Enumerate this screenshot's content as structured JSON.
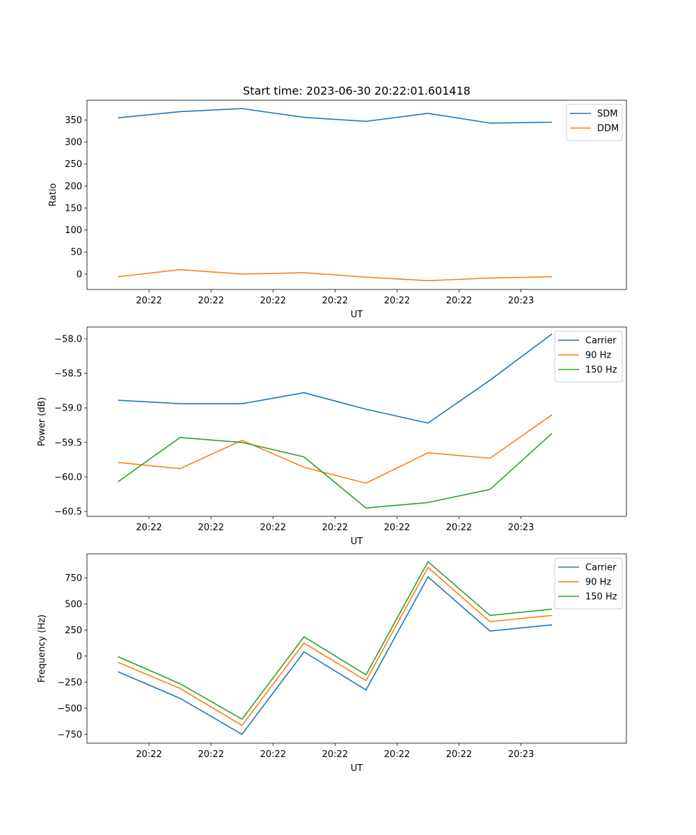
{
  "figure": {
    "title": "Start time: 2023-06-30 20:22:01.601418"
  },
  "chart_data": [
    {
      "type": "line",
      "title": "Start time: 2023-06-30 20:22:01.601418",
      "xlabel": "UT",
      "ylabel": "Ratio",
      "x": [
        1,
        2,
        3,
        4,
        5,
        6,
        7,
        8
      ],
      "x_tick_labels": [
        "20:22",
        "20:22",
        "20:22",
        "20:22",
        "20:22",
        "20:22",
        "20:23"
      ],
      "xlim": [
        0.5,
        9.2
      ],
      "ylim": [
        -35,
        395
      ],
      "yticks": [
        0,
        50,
        100,
        150,
        200,
        250,
        300,
        350
      ],
      "y_tick_labels": [
        "0",
        "50",
        "100",
        "150",
        "200",
        "250",
        "300",
        "350"
      ],
      "legend": "top-right",
      "series": [
        {
          "name": "SDM",
          "color": "#1f77b4",
          "values": [
            355,
            369,
            376,
            356,
            347,
            365,
            343,
            345
          ]
        },
        {
          "name": "DDM",
          "color": "#ff7f0e",
          "values": [
            -6,
            10,
            0,
            3,
            -7,
            -15,
            -9,
            -6
          ]
        }
      ]
    },
    {
      "type": "line",
      "xlabel": "UT",
      "ylabel": "Power (dB)",
      "x": [
        1,
        2,
        3,
        4,
        5,
        6,
        7,
        8
      ],
      "x_tick_labels": [
        "20:22",
        "20:22",
        "20:22",
        "20:22",
        "20:22",
        "20:22",
        "20:23"
      ],
      "xlim": [
        0.5,
        9.2
      ],
      "ylim": [
        -60.57,
        -57.83
      ],
      "yticks": [
        -60.5,
        -60.0,
        -59.5,
        -59.0,
        -58.5,
        -58.0
      ],
      "y_tick_labels": [
        "−60.5",
        "−60.0",
        "−59.5",
        "−59.0",
        "−58.5",
        "−58.0"
      ],
      "legend": "top-right",
      "series": [
        {
          "name": "Carrier",
          "color": "#1f77b4",
          "values": [
            -58.89,
            -58.94,
            -58.94,
            -58.78,
            -59.02,
            -59.22,
            -58.6,
            -57.93
          ]
        },
        {
          "name": "90 Hz",
          "color": "#ff7f0e",
          "values": [
            -59.79,
            -59.88,
            -59.47,
            -59.86,
            -60.09,
            -59.65,
            -59.73,
            -59.1
          ]
        },
        {
          "name": "150 Hz",
          "color": "#2ca02c",
          "values": [
            -60.07,
            -59.43,
            -59.5,
            -59.71,
            -60.45,
            -60.37,
            -60.18,
            -59.37
          ]
        }
      ]
    },
    {
      "type": "line",
      "xlabel": "UT",
      "ylabel": "Frequency (Hz)",
      "x": [
        1,
        2,
        3,
        4,
        5,
        6,
        7,
        8
      ],
      "x_tick_labels": [
        "20:22",
        "20:22",
        "20:22",
        "20:22",
        "20:22",
        "20:22",
        "20:23"
      ],
      "xlim": [
        0.5,
        9.2
      ],
      "ylim": [
        -835,
        980
      ],
      "yticks": [
        -750,
        -500,
        -250,
        0,
        250,
        500,
        750
      ],
      "y_tick_labels": [
        "−750",
        "−500",
        "−250",
        "0",
        "250",
        "500",
        "750"
      ],
      "legend": "top-right",
      "series": [
        {
          "name": "Carrier",
          "color": "#1f77b4",
          "values": [
            -150,
            -405,
            -750,
            40,
            -325,
            760,
            240,
            300
          ]
        },
        {
          "name": "90 Hz",
          "color": "#ff7f0e",
          "values": [
            -60,
            -310,
            -665,
            125,
            -235,
            850,
            330,
            390
          ]
        },
        {
          "name": "150 Hz",
          "color": "#2ca02c",
          "values": [
            -5,
            -265,
            -605,
            185,
            -180,
            905,
            390,
            450
          ]
        }
      ]
    }
  ]
}
